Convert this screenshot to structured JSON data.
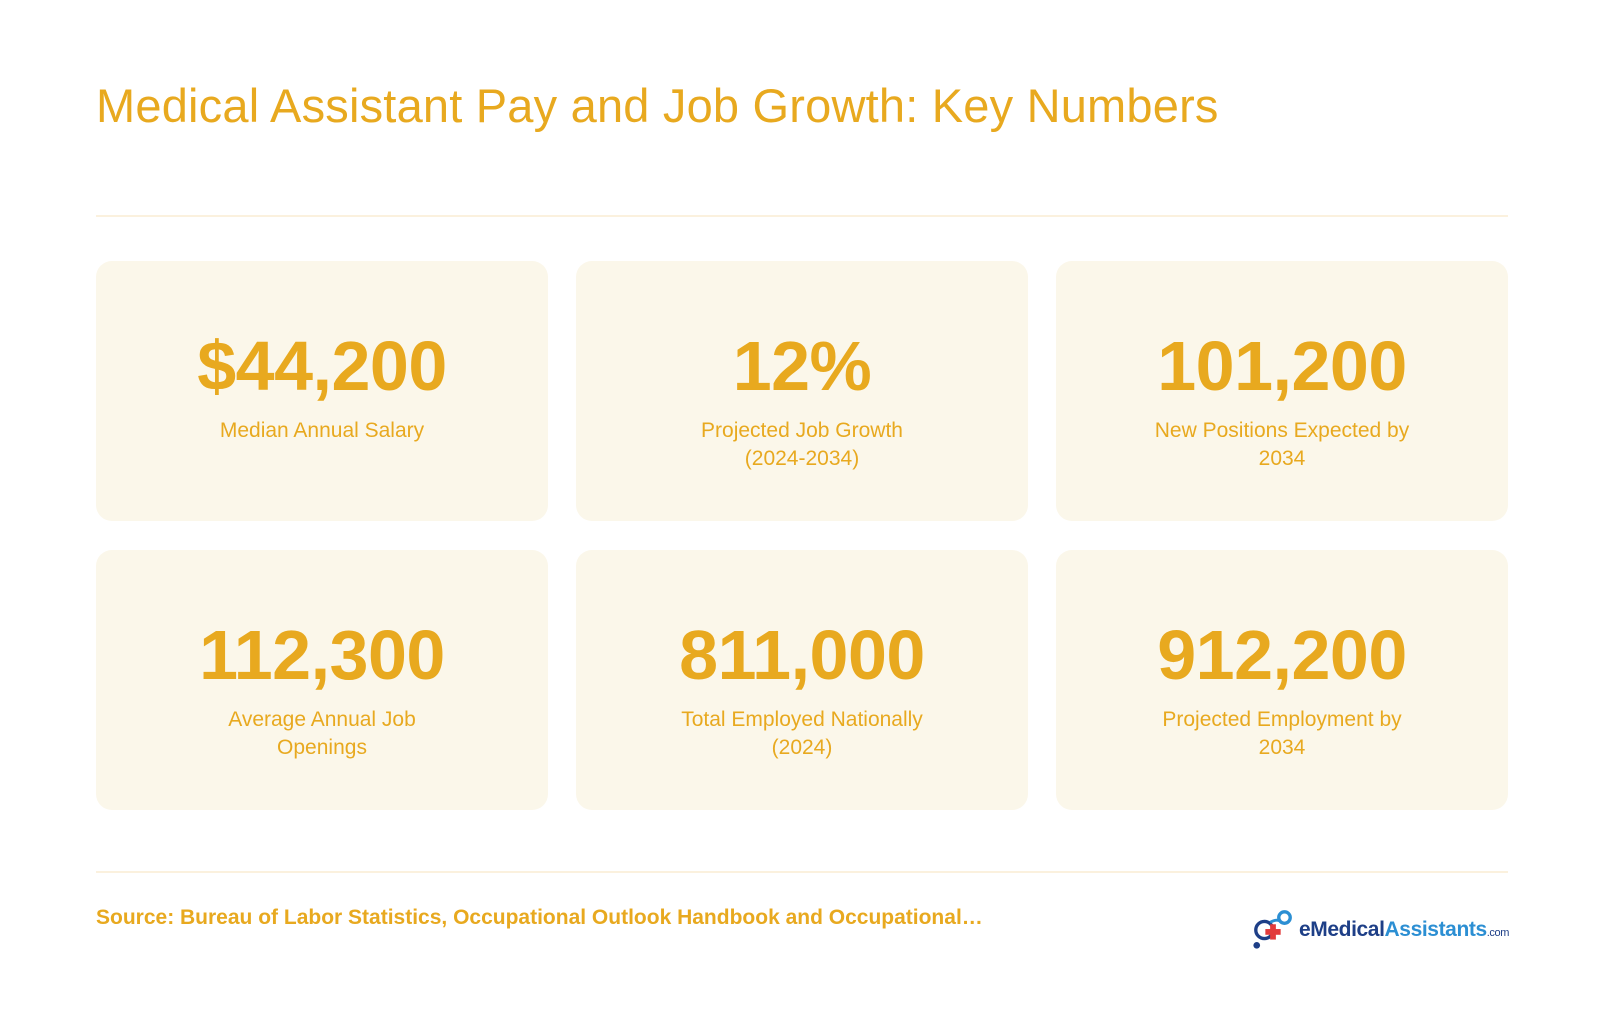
{
  "title": "Medical Assistant Pay and Job Growth: Key Numbers",
  "cards": [
    {
      "value": "$44,200",
      "label": "Median Annual Salary"
    },
    {
      "value": "12%",
      "label": "Projected Job Growth (2024-2034)"
    },
    {
      "value": "101,200",
      "label": "New Positions Expected by 2034"
    },
    {
      "value": "112,300",
      "label": "Average Annual Job Openings"
    },
    {
      "value": "811,000",
      "label": "Total Employed Nationally (2024)"
    },
    {
      "value": "912,200",
      "label": "Projected Employment by 2034"
    }
  ],
  "source": "Source: Bureau of Labor Statistics, Occupational Outlook Handbook and Occupational…",
  "logo": {
    "prefix": "e",
    "medical": "Medical",
    "assistants": "Assistants",
    "suffix": ".com"
  },
  "colors": {
    "accent": "#E8A91F",
    "card_background": "#FBF7EA",
    "divider": "#FBF1DE",
    "logo_navy": "#1E3F87",
    "logo_blue": "#2C8FD3",
    "logo_red": "#E23B3B"
  }
}
